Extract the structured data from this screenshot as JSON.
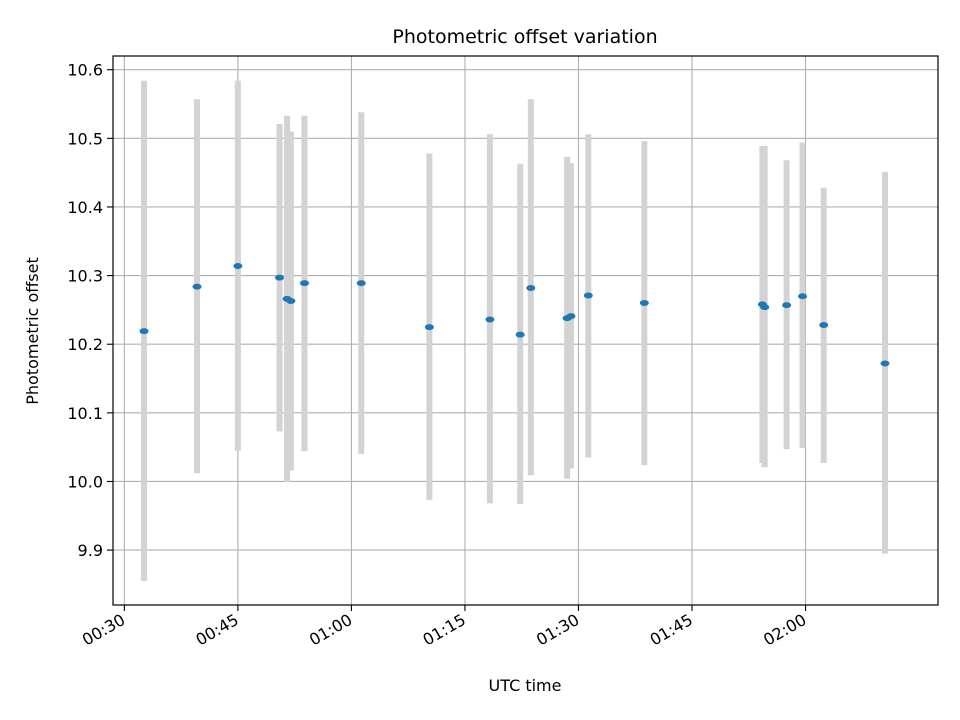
{
  "chart_data": {
    "type": "scatter",
    "title": "Photometric offset variation",
    "xlabel": "UTC time",
    "ylabel": "Photometric offset",
    "xlim_minutes": [
      28.5,
      137.5
    ],
    "ylim": [
      9.82,
      10.62
    ],
    "grid": true,
    "x_ticks": [
      {
        "minutes": 30,
        "label": "00:30"
      },
      {
        "minutes": 45,
        "label": "00:45"
      },
      {
        "minutes": 60,
        "label": "01:00"
      },
      {
        "minutes": 75,
        "label": "01:15"
      },
      {
        "minutes": 90,
        "label": "01:30"
      },
      {
        "minutes": 105,
        "label": "01:45"
      },
      {
        "minutes": 120,
        "label": "02:00"
      }
    ],
    "y_ticks": [
      {
        "value": 9.9,
        "label": "9.9"
      },
      {
        "value": 10.0,
        "label": "10.0"
      },
      {
        "value": 10.1,
        "label": "10.1"
      },
      {
        "value": 10.2,
        "label": "10.2"
      },
      {
        "value": 10.3,
        "label": "10.3"
      },
      {
        "value": 10.4,
        "label": "10.4"
      },
      {
        "value": 10.5,
        "label": "10.5"
      },
      {
        "value": 10.6,
        "label": "10.6"
      }
    ],
    "colors": {
      "point": "#1f77b4",
      "errorbar": "#d3d3d3",
      "grid": "#b0b0b0"
    },
    "points": [
      {
        "minutes": 32.6,
        "value": 10.219,
        "err_low": 9.855,
        "err_high": 10.584
      },
      {
        "minutes": 39.6,
        "value": 10.284,
        "err_low": 10.012,
        "err_high": 10.557
      },
      {
        "minutes": 45.0,
        "value": 10.314,
        "err_low": 10.045,
        "err_high": 10.584
      },
      {
        "minutes": 50.5,
        "value": 10.297,
        "err_low": 10.073,
        "err_high": 10.521
      },
      {
        "minutes": 51.5,
        "value": 10.266,
        "err_low": 9.999,
        "err_high": 10.533
      },
      {
        "minutes": 52.0,
        "value": 10.263,
        "err_low": 10.016,
        "err_high": 10.51
      },
      {
        "minutes": 53.8,
        "value": 10.289,
        "err_low": 10.044,
        "err_high": 10.533
      },
      {
        "minutes": 61.3,
        "value": 10.289,
        "err_low": 10.04,
        "err_high": 10.538
      },
      {
        "minutes": 70.3,
        "value": 10.225,
        "err_low": 9.973,
        "err_high": 10.478
      },
      {
        "minutes": 78.3,
        "value": 10.236,
        "err_low": 9.968,
        "err_high": 10.506
      },
      {
        "minutes": 82.3,
        "value": 10.214,
        "err_low": 9.967,
        "err_high": 10.463
      },
      {
        "minutes": 83.7,
        "value": 10.282,
        "err_low": 10.009,
        "err_high": 10.557
      },
      {
        "minutes": 88.5,
        "value": 10.238,
        "err_low": 10.004,
        "err_high": 10.473
      },
      {
        "minutes": 89.0,
        "value": 10.241,
        "err_low": 10.019,
        "err_high": 10.464
      },
      {
        "minutes": 91.3,
        "value": 10.271,
        "err_low": 10.035,
        "err_high": 10.506
      },
      {
        "minutes": 98.7,
        "value": 10.26,
        "err_low": 10.024,
        "err_high": 10.496
      },
      {
        "minutes": 114.3,
        "value": 10.258,
        "err_low": 10.027,
        "err_high": 10.489
      },
      {
        "minutes": 114.6,
        "value": 10.254,
        "err_low": 10.021,
        "err_high": 10.489
      },
      {
        "minutes": 117.5,
        "value": 10.257,
        "err_low": 10.047,
        "err_high": 10.468
      },
      {
        "minutes": 119.6,
        "value": 10.27,
        "err_low": 10.049,
        "err_high": 10.494
      },
      {
        "minutes": 122.4,
        "value": 10.228,
        "err_low": 10.027,
        "err_high": 10.428
      },
      {
        "minutes": 130.5,
        "value": 10.172,
        "err_low": 9.895,
        "err_high": 10.451
      }
    ]
  }
}
